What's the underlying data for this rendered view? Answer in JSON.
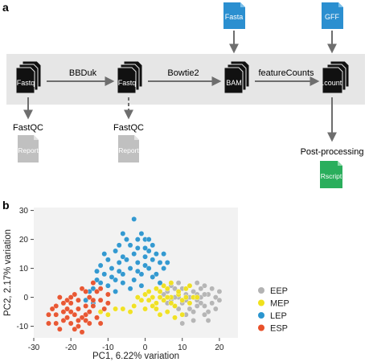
{
  "panel_a": {
    "label": "a",
    "nodes": {
      "fastq1": "Fastq",
      "fastq2": "Fastq",
      "bam": "BAM",
      "count": ".count",
      "fasta": "Fasta",
      "gff": "GFF",
      "report1": "Report",
      "report2": "Report",
      "rscript": "Rscript"
    },
    "steps": {
      "bbduk": "BBDuk",
      "bowtie2": "Bowtie2",
      "featurecounts": "featureCounts",
      "fastqc1": "FastQC",
      "fastqc2": "FastQC",
      "postprocessing": "Post-processing"
    },
    "colors": {
      "doc_black": "#111111",
      "doc_blue": "#2b8fd0",
      "doc_grey": "#c0c0c0",
      "doc_green": "#2aae5c",
      "band": "#e6e6e6",
      "arrow": "#6e6e6e"
    }
  },
  "panel_b": {
    "label": "b",
    "chart_data": {
      "type": "scatter",
      "xlabel": "PC1, 6.22% variation",
      "ylabel": "PC2, 2.17% variation",
      "xlim": [
        -30,
        25
      ],
      "ylim": [
        -14,
        31
      ],
      "xticks": [
        -30,
        -20,
        -10,
        0,
        10,
        20
      ],
      "yticks": [
        -10,
        0,
        10,
        20,
        30
      ],
      "legend_position": "right",
      "series": [
        {
          "name": "EEP",
          "color": "#b3b3b3",
          "points": [
            [
              6,
              2
            ],
            [
              7,
              -1
            ],
            [
              8,
              3
            ],
            [
              9,
              0
            ],
            [
              10,
              -2
            ],
            [
              11,
              1
            ],
            [
              12,
              -4
            ],
            [
              13,
              2
            ],
            [
              14,
              -1
            ],
            [
              15,
              0
            ],
            [
              16,
              -3
            ],
            [
              17,
              1
            ],
            [
              18,
              -2
            ],
            [
              19,
              0
            ],
            [
              20,
              -1
            ],
            [
              9,
              -4
            ],
            [
              11,
              -6
            ],
            [
              13,
              -5
            ],
            [
              15,
              -2
            ],
            [
              17,
              -5
            ],
            [
              12,
              4
            ],
            [
              14,
              5
            ],
            [
              16,
              4
            ],
            [
              10,
              3
            ],
            [
              8,
              -3
            ],
            [
              6,
              -2
            ],
            [
              5,
              1
            ],
            [
              13,
              -8
            ],
            [
              16,
              -6
            ],
            [
              18,
              3
            ],
            [
              11,
              -1
            ],
            [
              14,
              1
            ],
            [
              19,
              -4
            ],
            [
              7,
              4
            ],
            [
              12,
              0
            ],
            [
              15,
              3
            ],
            [
              20,
              2
            ],
            [
              17,
              -8
            ],
            [
              10,
              -9
            ],
            [
              14,
              -3
            ],
            [
              9,
              5
            ],
            [
              16,
              1
            ],
            [
              8,
              0
            ]
          ]
        },
        {
          "name": "MEP",
          "color": "#f0e11c",
          "points": [
            [
              0,
              1
            ],
            [
              2,
              0
            ],
            [
              3,
              -2
            ],
            [
              4,
              2
            ],
            [
              5,
              -1
            ],
            [
              6,
              3
            ],
            [
              7,
              0
            ],
            [
              8,
              -3
            ],
            [
              9,
              1
            ],
            [
              10,
              -1
            ],
            [
              11,
              3
            ],
            [
              12,
              -2
            ],
            [
              13,
              0
            ],
            [
              5,
              4
            ],
            [
              7,
              5
            ],
            [
              3,
              3
            ],
            [
              1,
              -1
            ],
            [
              -1,
              -1
            ],
            [
              -2,
              0
            ],
            [
              0,
              -4
            ],
            [
              2,
              -3
            ],
            [
              4,
              -6
            ],
            [
              6,
              -5
            ],
            [
              8,
              -7
            ],
            [
              10,
              -6
            ],
            [
              -4,
              -5
            ],
            [
              -6,
              -4
            ],
            [
              -8,
              -4
            ],
            [
              -10,
              -6
            ],
            [
              -12,
              -5
            ],
            [
              9,
              2
            ],
            [
              6,
              0
            ],
            [
              11,
              0
            ],
            [
              4,
              0
            ],
            [
              12,
              4
            ],
            [
              3,
              -4
            ],
            [
              7,
              -2
            ],
            [
              -3,
              -3
            ],
            [
              1,
              2
            ],
            [
              14,
              0
            ]
          ]
        },
        {
          "name": "LEP",
          "color": "#2a95cf",
          "points": [
            [
              -14,
              3
            ],
            [
              -12,
              5
            ],
            [
              -10,
              4
            ],
            [
              -8,
              6
            ],
            [
              -6,
              8
            ],
            [
              -4,
              10
            ],
            [
              -2,
              12
            ],
            [
              0,
              14
            ],
            [
              -3,
              15
            ],
            [
              -5,
              13
            ],
            [
              -7,
              12
            ],
            [
              -9,
              10
            ],
            [
              -11,
              8
            ],
            [
              -13,
              6
            ],
            [
              -15,
              2
            ],
            [
              -4,
              18
            ],
            [
              -2,
              20
            ],
            [
              -1,
              22
            ],
            [
              -3,
              27
            ],
            [
              0,
              20
            ],
            [
              2,
              18
            ],
            [
              3,
              15
            ],
            [
              4,
              12
            ],
            [
              5,
              10
            ],
            [
              1,
              16
            ],
            [
              -6,
              14
            ],
            [
              -8,
              16
            ],
            [
              -10,
              13
            ],
            [
              -12,
              11
            ],
            [
              -7,
              18
            ],
            [
              -5,
              20
            ],
            [
              0,
              11
            ],
            [
              2,
              13
            ],
            [
              3,
              8
            ],
            [
              6,
              12
            ],
            [
              -1,
              8
            ],
            [
              -3,
              6
            ],
            [
              -9,
              7
            ],
            [
              -6,
              5
            ],
            [
              -2,
              17
            ],
            [
              1,
              10
            ],
            [
              -8,
              2
            ],
            [
              -16,
              -1
            ],
            [
              -14,
              -2
            ],
            [
              -4,
              3
            ],
            [
              -1,
              4
            ],
            [
              2,
              7
            ],
            [
              4,
              5
            ],
            [
              -11,
              15
            ],
            [
              -6,
              22
            ],
            [
              0,
              17
            ],
            [
              -13,
              9
            ],
            [
              -7,
              9
            ],
            [
              -2,
              9
            ],
            [
              1,
              20
            ],
            [
              5,
              15
            ]
          ]
        },
        {
          "name": "ESP",
          "color": "#e8502a",
          "points": [
            [
              -24,
              -3
            ],
            [
              -22,
              -5
            ],
            [
              -20,
              -2
            ],
            [
              -18,
              -4
            ],
            [
              -16,
              -6
            ],
            [
              -14,
              -3
            ],
            [
              -12,
              -1
            ],
            [
              -10,
              1
            ],
            [
              -22,
              -8
            ],
            [
              -20,
              -9
            ],
            [
              -18,
              -10
            ],
            [
              -16,
              -8
            ],
            [
              -24,
              -6
            ],
            [
              -26,
              -9
            ],
            [
              -21,
              -1
            ],
            [
              -19,
              1
            ],
            [
              -17,
              3
            ],
            [
              -15,
              0
            ],
            [
              -13,
              2
            ],
            [
              -11,
              -4
            ],
            [
              -23,
              -11
            ],
            [
              -25,
              -4
            ],
            [
              -17,
              -7
            ],
            [
              -19,
              -6
            ],
            [
              -21,
              -7
            ],
            [
              -15,
              -5
            ],
            [
              -13,
              -7
            ],
            [
              -12,
              -9
            ],
            [
              -20,
              -5
            ],
            [
              -18,
              -1
            ],
            [
              -16,
              2
            ],
            [
              -14,
              5
            ],
            [
              -22,
              -2
            ],
            [
              -24,
              -9
            ],
            [
              -26,
              -6
            ],
            [
              -19,
              -11
            ],
            [
              -17,
              -12
            ],
            [
              -15,
              -9
            ],
            [
              -21,
              -4
            ],
            [
              -23,
              0
            ],
            [
              -16,
              -3
            ],
            [
              -18,
              -8
            ],
            [
              -14,
              -1
            ],
            [
              -20,
              0
            ],
            [
              -12,
              3
            ],
            [
              -10,
              -2
            ]
          ]
        }
      ]
    }
  }
}
